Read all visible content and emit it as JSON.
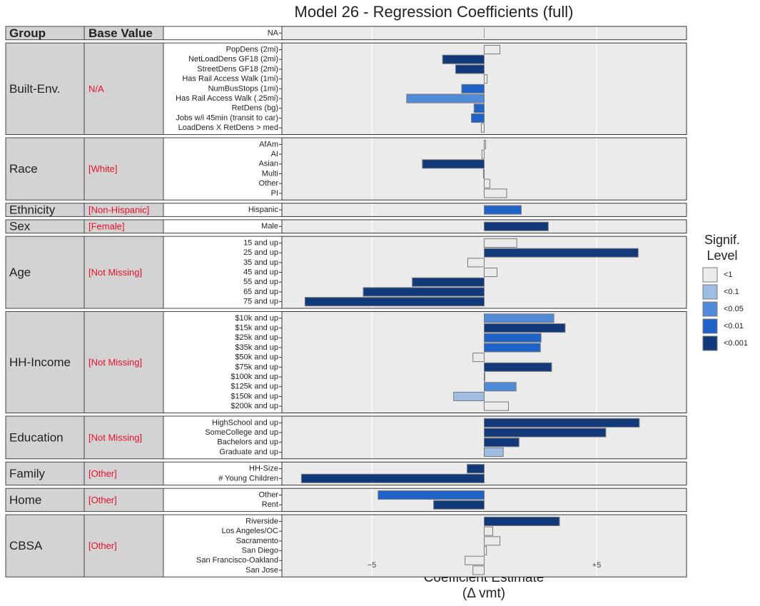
{
  "chart_data": {
    "type": "bar",
    "orientation": "horizontal",
    "title": "Model 26 - Regression Coefficients (full)",
    "xlabel": [
      "Coefficient Estimate",
      "(Δ vmt)"
    ],
    "columns": [
      "Group",
      "Base Value"
    ],
    "xlim": [
      -9,
      9
    ],
    "xticks": [
      {
        "value": -5,
        "label": "−5"
      },
      {
        "value": 5,
        "label": "+5"
      }
    ],
    "grid": true,
    "legend": {
      "position": "right",
      "title": [
        "Signif.",
        "Level"
      ],
      "levels": [
        {
          "label": "<1",
          "color": "#ebebeb"
        },
        {
          "label": "<0.1",
          "color": "#9dbde2"
        },
        {
          "label": "<0.05",
          "color": "#4f8bd8"
        },
        {
          "label": "<0.01",
          "color": "#1f63c9"
        },
        {
          "label": "<0.001",
          "color": "#123a7a"
        }
      ]
    },
    "groups": [
      {
        "categories": [
          "NA"
        ],
        "values": [
          null
        ],
        "levels": [
          null
        ]
      },
      {
        "name": "Built-Env.",
        "base": "N/A",
        "categories": [
          "PopDens (2mi)",
          "NetLoadDens GF18 (2mi)",
          "StreetDens GF18 (2mi)",
          "Has Rail Access Walk (1mi)",
          "NumBusStops (1mi)",
          "Has Rail Access Walk (.25mi)",
          "RetDens (bg)",
          "Jobs w/i 45min (transit to car)",
          "LoadDens X RetDens > med"
        ],
        "values": [
          0.7,
          -1.85,
          -1.27,
          0.13,
          -1.0,
          -3.45,
          -0.45,
          -0.57,
          -0.13
        ],
        "levels": [
          "<1",
          "<0.001",
          "<0.001",
          "<1",
          "<0.01",
          "<0.05",
          "<0.01",
          "<0.01",
          "<1"
        ]
      },
      {
        "name": "Race",
        "base": "[White]",
        "categories": [
          "AfAm",
          "AI",
          "Asian",
          "Multi",
          "Other",
          "PI"
        ],
        "values": [
          0.06,
          -0.1,
          -2.75,
          -0.03,
          0.25,
          1.0
        ],
        "levels": [
          "<1",
          "<1",
          "<0.001",
          "<1",
          "<1",
          "<1"
        ]
      },
      {
        "name": "Ethnicity",
        "base": "[Non-Hispanic]",
        "categories": [
          "Hispanic"
        ],
        "values": [
          1.65
        ],
        "levels": [
          "<0.01"
        ]
      },
      {
        "name": "Sex",
        "base": "[Female]",
        "categories": [
          "Male"
        ],
        "values": [
          2.85
        ],
        "levels": [
          "<0.001"
        ]
      },
      {
        "name": "Age",
        "base": "[Not Missing]",
        "categories": [
          "15 and up",
          "25 and up",
          "35 and up",
          "45 and up",
          "55 and up",
          "65 and up",
          "75 and up"
        ],
        "values": [
          1.45,
          6.85,
          -0.73,
          0.57,
          -3.2,
          -5.38,
          -7.97
        ],
        "levels": [
          "<1",
          "<0.001",
          "<1",
          "<1",
          "<0.001",
          "<0.001",
          "<0.001"
        ]
      },
      {
        "name": "HH-Income",
        "base": "[Not Missing]",
        "categories": [
          "$10k and up",
          "$15k and up",
          "$25k and up",
          "$35k and up",
          "$50k and up",
          "$75k and up",
          "$100k and up",
          "$125k and up",
          "$150k and up",
          "$200k and up"
        ],
        "values": [
          3.1,
          3.6,
          2.53,
          2.5,
          -0.5,
          3.0,
          0.03,
          1.42,
          -1.36,
          1.08
        ],
        "levels": [
          "<0.05",
          "<0.001",
          "<0.01",
          "<0.01",
          "<1",
          "<0.001",
          "<1",
          "<0.05",
          "<0.1",
          "<1"
        ]
      },
      {
        "name": "Education",
        "base": "[Not Missing]",
        "categories": [
          "HighSchool and up",
          "SomeCollege and up",
          "Bachelors and up",
          "Graduate and up"
        ],
        "values": [
          6.9,
          5.41,
          1.55,
          0.85
        ],
        "levels": [
          "<0.001",
          "<0.001",
          "<0.001",
          "<0.1"
        ]
      },
      {
        "name": "Family",
        "base": "[Other]",
        "categories": [
          "HH-Size",
          "# Young Children"
        ],
        "values": [
          -0.76,
          -8.13
        ],
        "levels": [
          "<0.001",
          "<0.001"
        ]
      },
      {
        "name": "Home",
        "base": "[Other]",
        "categories": [
          "Other",
          "Rent"
        ],
        "values": [
          -4.72,
          -2.25
        ],
        "levels": [
          "<0.01",
          "<0.001"
        ]
      },
      {
        "name": "CBSA",
        "base": "[Other]",
        "categories": [
          "Riverside",
          "Los Angeles/OC",
          "Sacramento",
          "San Diego",
          "San Francisco-Oakland",
          "San Jose"
        ],
        "values": [
          3.35,
          0.38,
          0.7,
          0.1,
          -0.85,
          -0.5
        ],
        "levels": [
          "<0.001",
          "<1",
          "<1",
          "<1",
          "<1",
          "<1"
        ]
      }
    ]
  }
}
